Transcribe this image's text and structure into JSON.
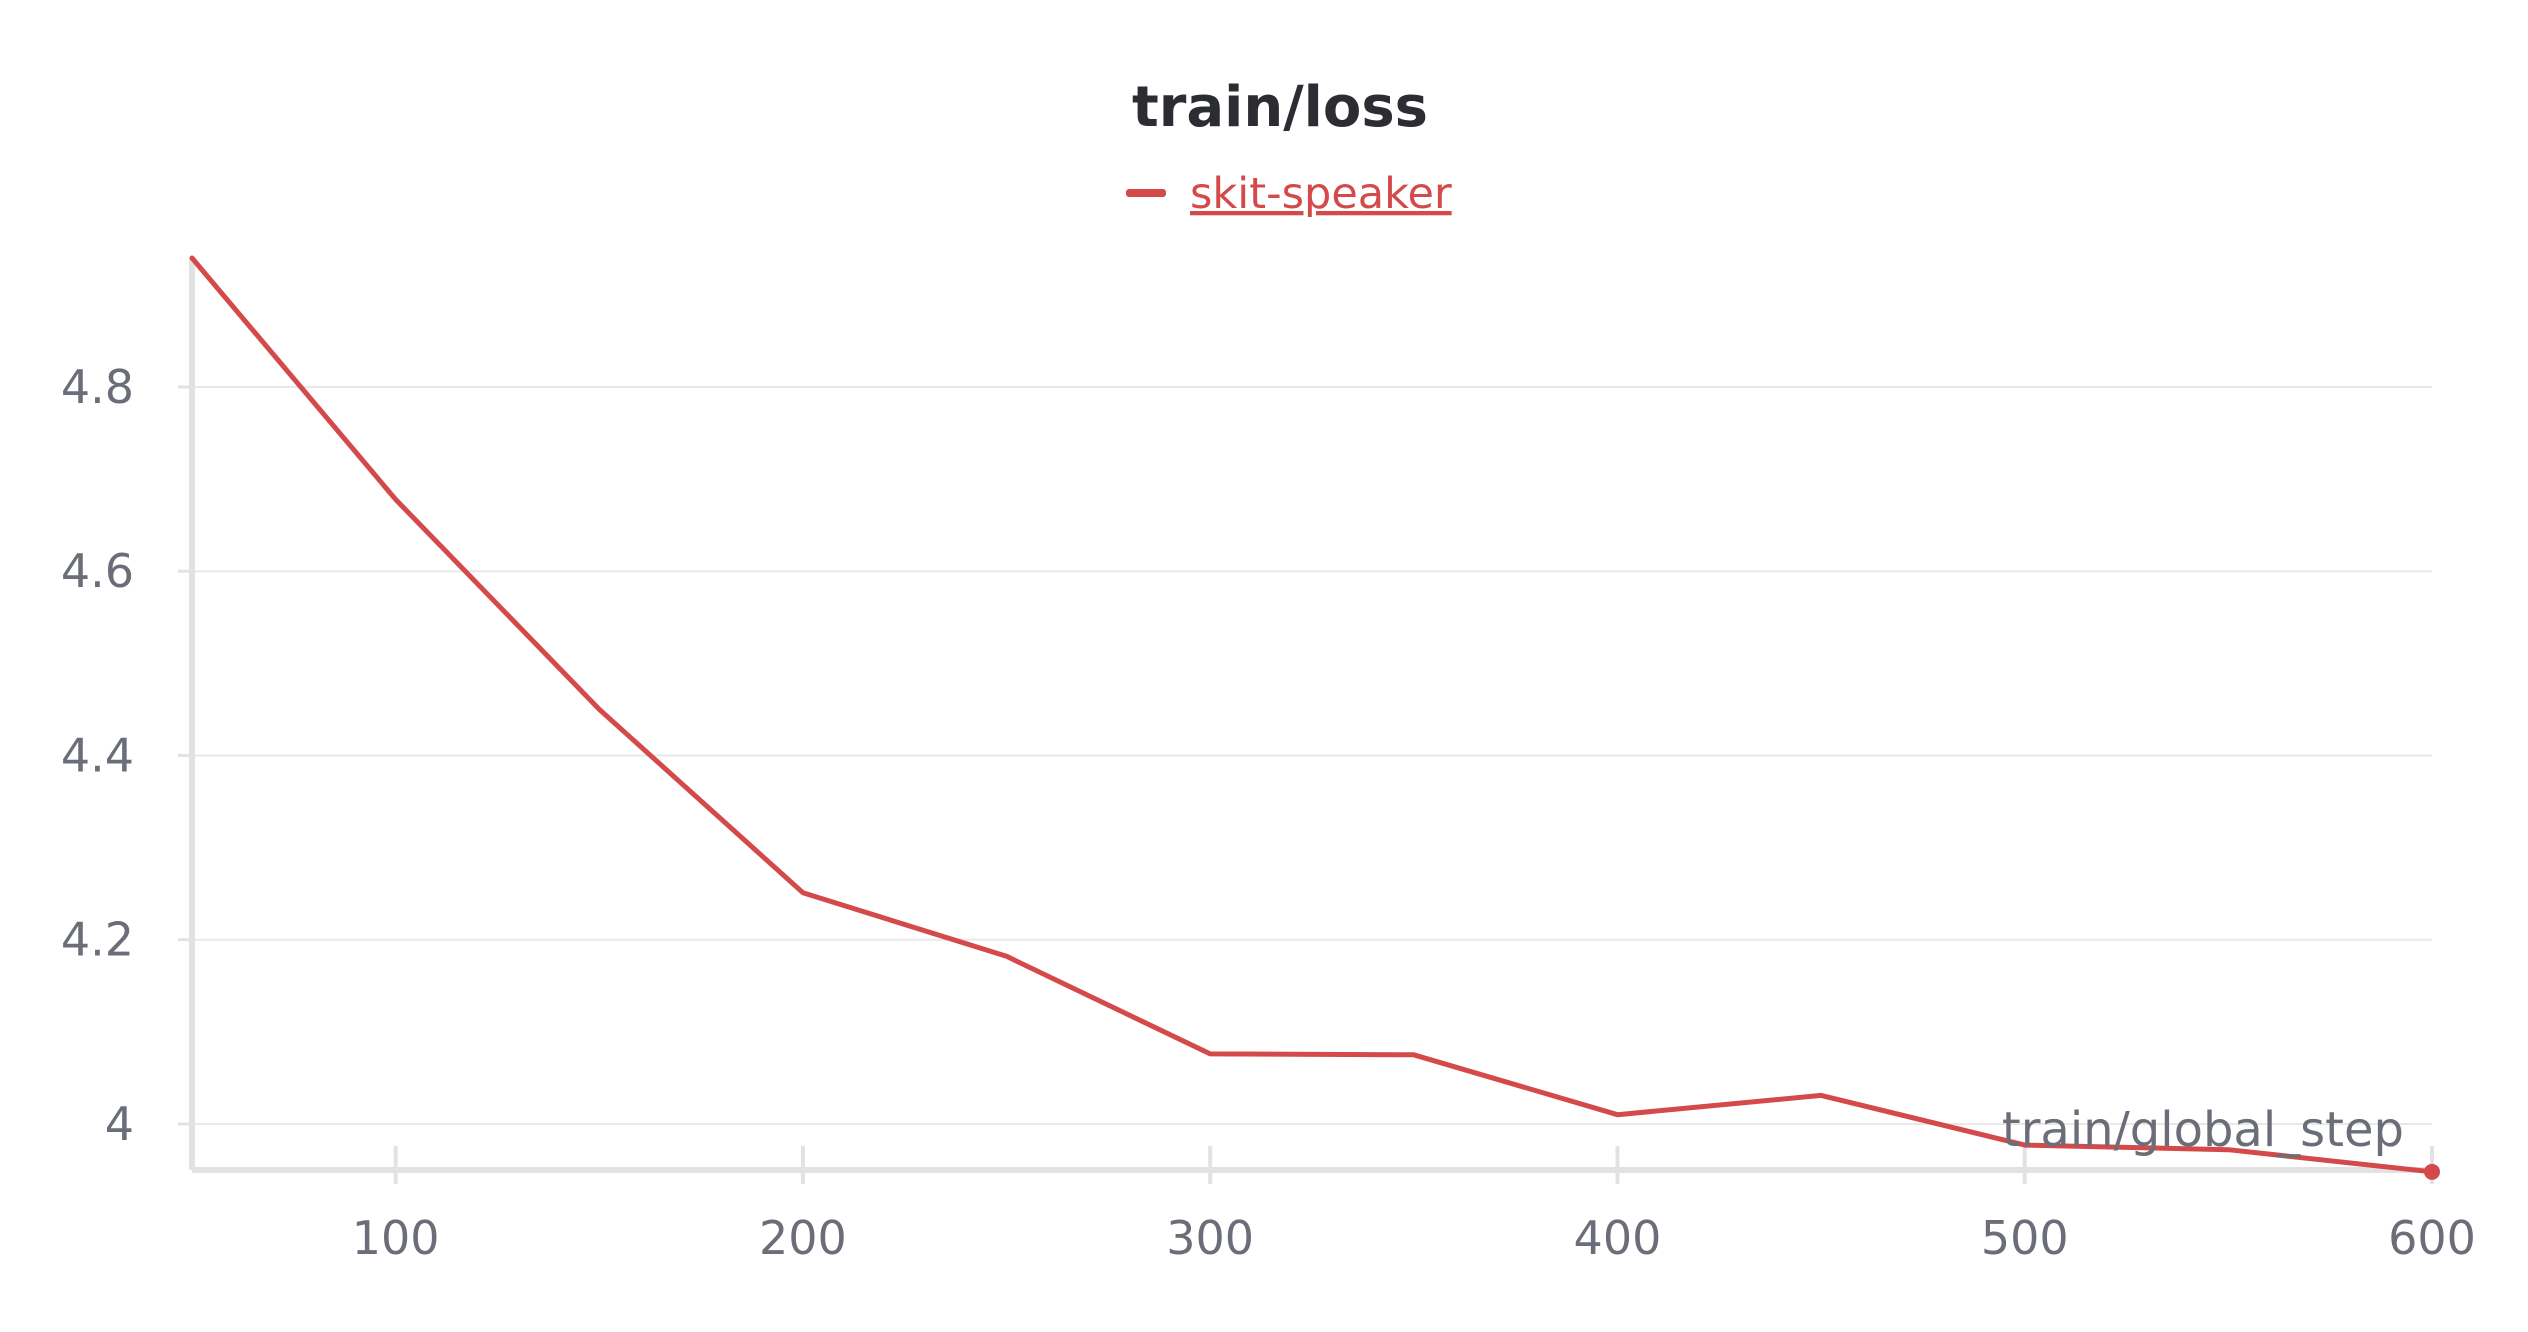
{
  "chart_data": {
    "type": "line",
    "title": "train/loss",
    "xlabel": "train/global_step",
    "ylabel": "",
    "xlim": [
      50,
      600
    ],
    "ylim": [
      3.95,
      4.94
    ],
    "x_ticks": [
      100,
      200,
      300,
      400,
      500,
      600
    ],
    "y_ticks": [
      4,
      4.2,
      4.4,
      4.6,
      4.8
    ],
    "y_tick_labels": [
      "4",
      "4.2",
      "4.4",
      "4.6",
      "4.8"
    ],
    "grid": true,
    "legend_position": "top-center",
    "series": [
      {
        "name": "skit-speaker",
        "color": "#d44a4a",
        "x": [
          50,
          100,
          150,
          200,
          250,
          300,
          350,
          400,
          450,
          500,
          550,
          600
        ],
        "y": [
          4.94,
          4.678,
          4.45,
          4.251,
          4.182,
          4.076,
          4.075,
          4.01,
          4.031,
          3.977,
          3.972,
          3.948
        ]
      }
    ]
  }
}
